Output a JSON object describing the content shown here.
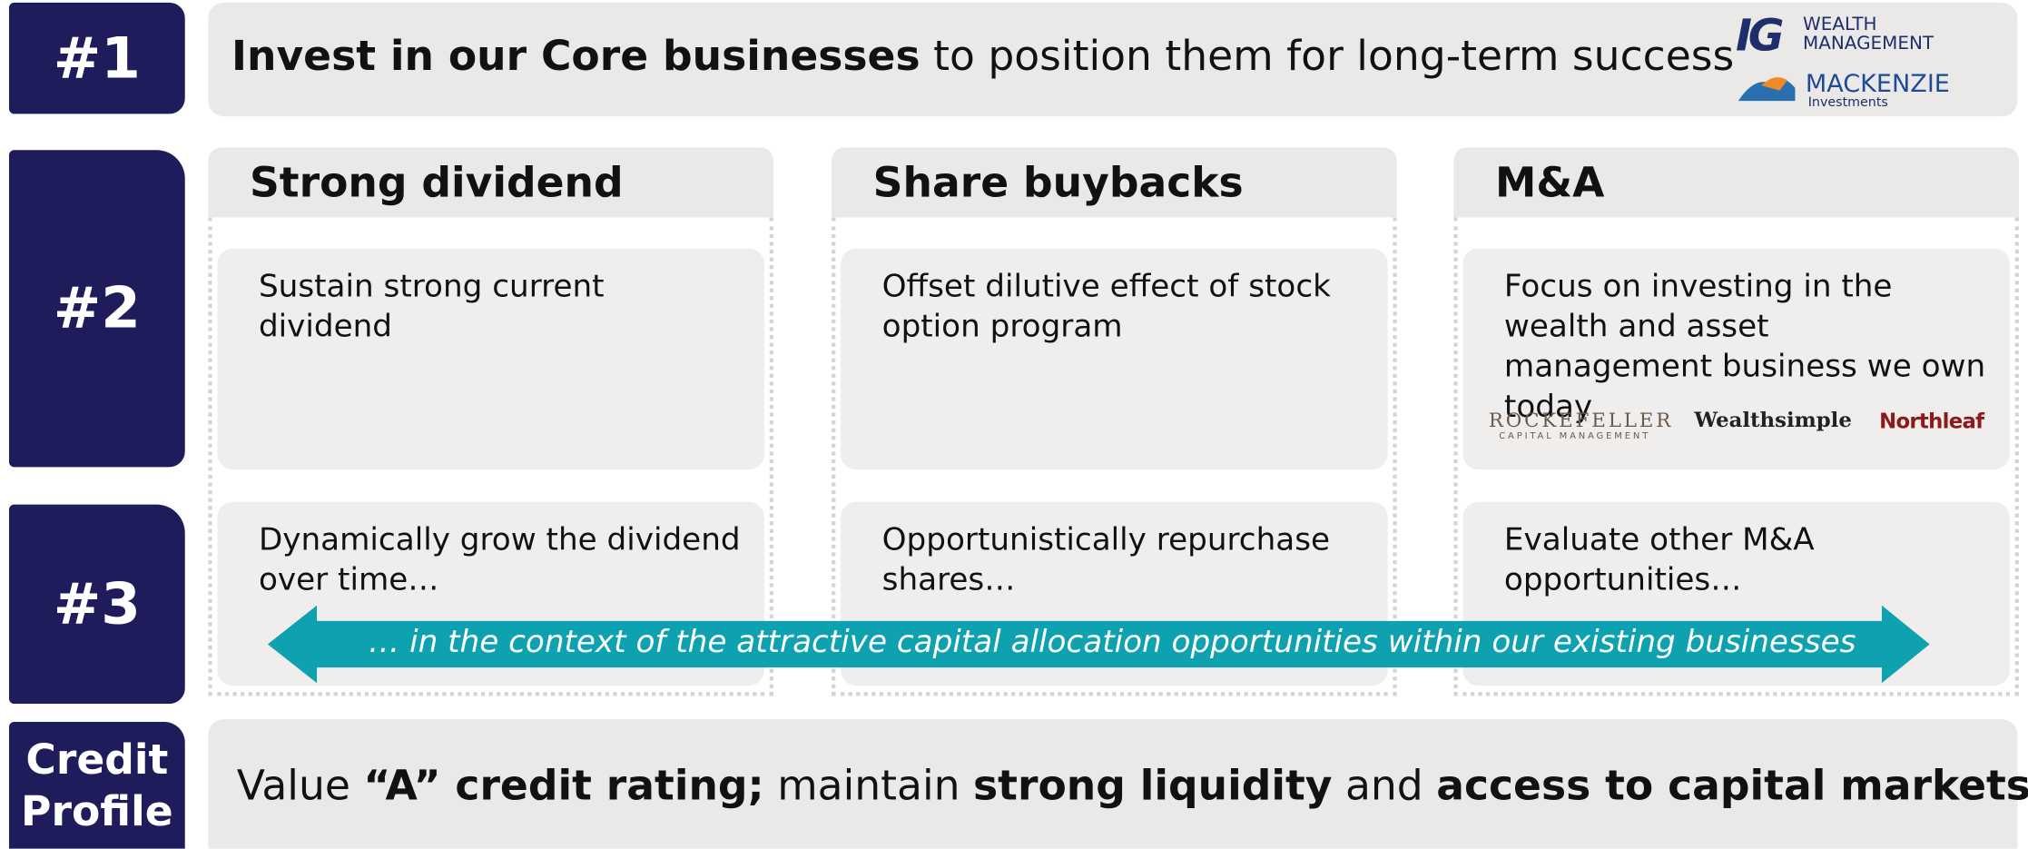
{
  "priorities": [
    {
      "label": "#1"
    },
    {
      "label": "#2"
    },
    {
      "label": "#3"
    },
    {
      "label_lines": [
        "Credit",
        "Profile"
      ]
    }
  ],
  "core": {
    "bold": "Invest in our Core businesses",
    "rest": "to position them for long-term success",
    "logos": {
      "ig_mark": "IG",
      "ig_lines": [
        "WEALTH",
        "MANAGEMENT"
      ],
      "mackenzie": "MACKENZIE",
      "mackenzie_sub": "Investments"
    }
  },
  "columns": [
    {
      "header": "Strong dividend",
      "row2": "Sustain strong current dividend",
      "row3": "Dynamically grow the dividend over time…"
    },
    {
      "header": "Share buybacks",
      "row2": "Offset dilutive effect of stock option program",
      "row3": "Opportunistically repurchase shares…"
    },
    {
      "header": "M&A",
      "row2": "Focus on investing in the wealth and asset management business we own today",
      "row3": "Evaluate other M&A opportunities…",
      "logos": {
        "rockefeller": "ROCKEFELLER",
        "rockefeller_sub": "CAPITAL MANAGEMENT",
        "wealthsimple": "Wealthsimple",
        "northleaf": "Northleaf"
      }
    }
  ],
  "arrow_text": "… in the context of the attractive capital allocation opportunities within our existing businesses",
  "credit": {
    "parts": [
      {
        "text": "Value",
        "bold": false
      },
      {
        "text": "“A” credit rating;",
        "bold": true
      },
      {
        "text": "maintain",
        "bold": false
      },
      {
        "text": "strong liquidity",
        "bold": true
      },
      {
        "text": "and",
        "bold": false
      },
      {
        "text": "access to capital markets",
        "bold": true
      }
    ]
  }
}
